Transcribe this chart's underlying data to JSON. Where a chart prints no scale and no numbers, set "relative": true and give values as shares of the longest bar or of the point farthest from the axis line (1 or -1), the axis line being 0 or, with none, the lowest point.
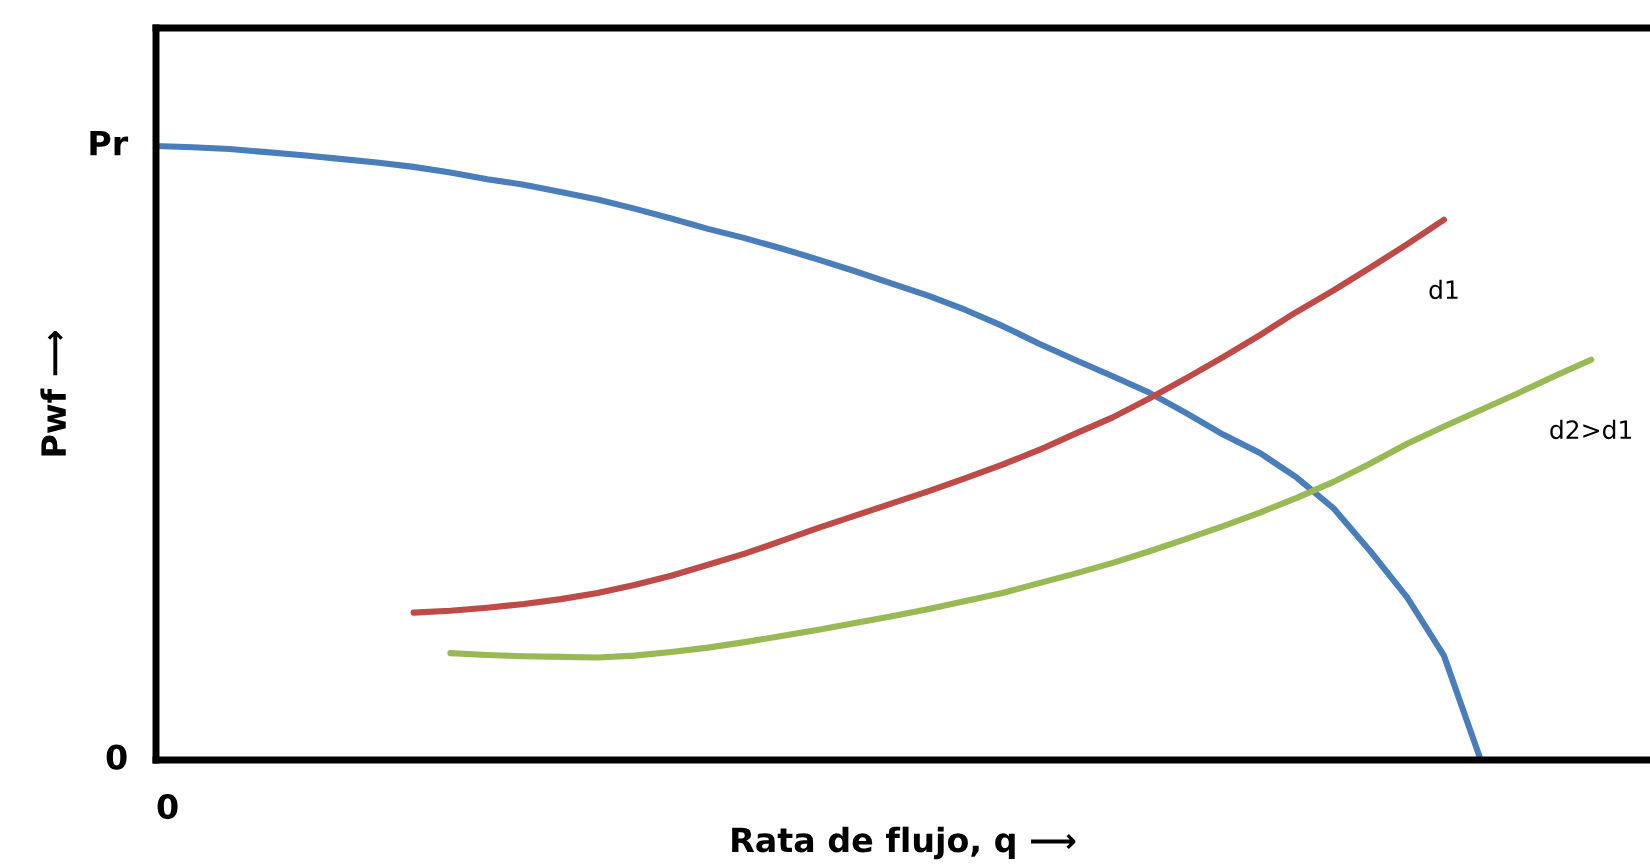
{
  "chart_data": {
    "type": "line",
    "xlabel": "Rata de flujo, q ⟶",
    "ylabel": "Pwf ⟶",
    "relative": true,
    "legend": false,
    "marker": "none",
    "line_style": "solid",
    "categories": [
      null,
      null,
      null,
      null,
      null,
      null,
      null,
      null,
      null,
      null,
      null,
      null,
      null,
      null,
      null,
      null,
      null,
      null,
      null,
      null,
      null,
      null,
      null,
      null,
      null,
      null,
      null,
      null,
      null,
      null,
      null,
      null,
      null,
      null,
      null,
      null,
      null,
      null,
      null,
      null,
      null
    ],
    "series": [
      {
        "color": "#4a7ebb",
        "values": [
          1,
          0.998,
          0.995,
          0.99,
          0.985,
          0.979,
          0.973,
          0.966,
          0.957,
          0.946,
          0.937,
          0.925,
          0.913,
          0.898,
          0.882,
          0.865,
          0.85,
          0.833,
          0.815,
          0.796,
          0.776,
          0.756,
          0.733,
          0.707,
          0.678,
          0.651,
          0.625,
          0.598,
          0.565,
          0.53,
          0.5,
          0.46,
          0.41,
          0.34,
          0.265,
          0.17,
          0,
          null,
          null,
          null,
          null
        ]
      },
      {
        "name": "d1",
        "color": "#be4b48",
        "values": [
          null,
          null,
          null,
          null,
          null,
          null,
          null,
          0.24,
          0.243,
          0.248,
          0.254,
          0.262,
          0.272,
          0.285,
          0.3,
          0.318,
          0.336,
          0.357,
          0.378,
          0.398,
          0.418,
          0.438,
          0.459,
          0.481,
          0.505,
          0.532,
          0.558,
          0.589,
          0.622,
          0.656,
          0.692,
          0.73,
          0.765,
          0.802,
          0.84,
          0.88,
          null,
          null,
          null,
          null,
          null
        ]
      },
      {
        "name": "d2>d1",
        "color": "#98b954",
        "values": [
          null,
          null,
          null,
          null,
          null,
          null,
          null,
          null,
          0.174,
          0.171,
          0.169,
          0.168,
          0.167,
          0.17,
          0.176,
          0.183,
          0.192,
          0.202,
          0.212,
          0.223,
          0.234,
          0.246,
          0.259,
          0.272,
          0.288,
          0.304,
          0.321,
          0.34,
          0.36,
          0.381,
          0.403,
          0.427,
          0.453,
          0.483,
          0.515,
          0.543,
          0.57,
          0.597,
          0.625,
          0.652,
          null
        ]
      }
    ],
    "annotations": [
      "Pr",
      "0",
      "0"
    ]
  }
}
